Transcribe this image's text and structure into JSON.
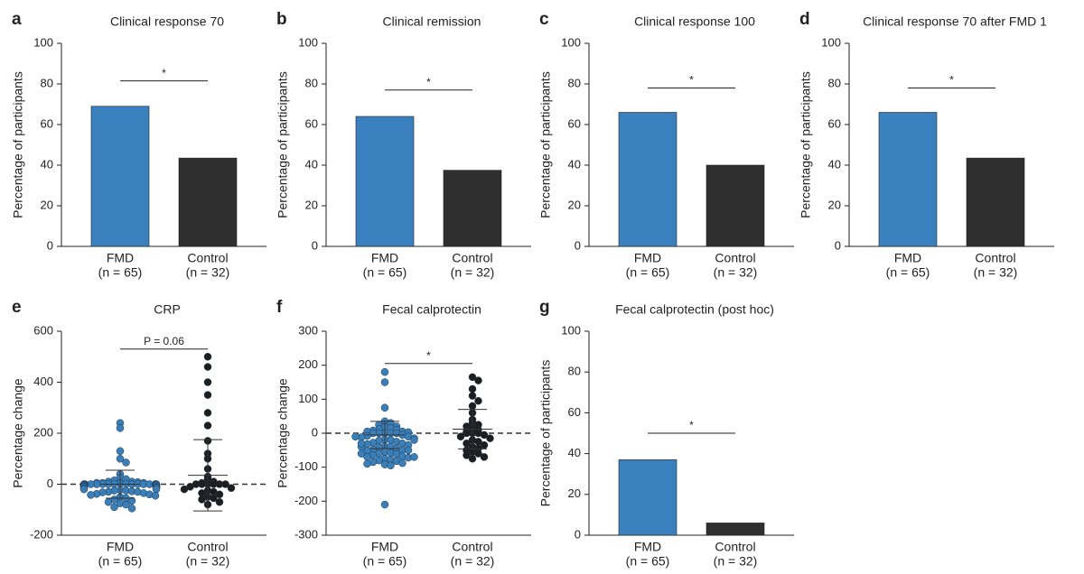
{
  "chart_data": [
    {
      "panel": "a",
      "type": "bar",
      "title": "Clinical response 70",
      "ylabel": "Percentage of participants",
      "categories": [
        "FMD",
        "Control"
      ],
      "category_notes": [
        "(n = 65)",
        "(n = 32)"
      ],
      "values": [
        69,
        43.5
      ],
      "colors": [
        "#3a80bf",
        "#2f2f2f"
      ],
      "ylim": [
        0,
        100
      ],
      "yticks": [
        0,
        20,
        40,
        60,
        80,
        100
      ],
      "significance": {
        "label": "*",
        "y": 81.5
      }
    },
    {
      "panel": "b",
      "type": "bar",
      "title": "Clinical remission",
      "ylabel": "Percentage of participants",
      "categories": [
        "FMD",
        "Control"
      ],
      "category_notes": [
        "(n = 65)",
        "(n = 32)"
      ],
      "values": [
        64,
        37.5
      ],
      "colors": [
        "#3a80bf",
        "#2f2f2f"
      ],
      "ylim": [
        0,
        100
      ],
      "yticks": [
        0,
        20,
        40,
        60,
        80,
        100
      ],
      "significance": {
        "label": "*",
        "y": 77
      }
    },
    {
      "panel": "c",
      "type": "bar",
      "title": "Clinical response 100",
      "ylabel": "Percentage of participants",
      "categories": [
        "FMD",
        "Control"
      ],
      "category_notes": [
        "(n = 65)",
        "(n = 32)"
      ],
      "values": [
        66,
        40
      ],
      "colors": [
        "#3a80bf",
        "#2f2f2f"
      ],
      "ylim": [
        0,
        100
      ],
      "yticks": [
        0,
        20,
        40,
        60,
        80,
        100
      ],
      "significance": {
        "label": "*",
        "y": 78
      }
    },
    {
      "panel": "d",
      "type": "bar",
      "title": "Clinical response 70 after FMD 1",
      "ylabel": "Percentage of participants",
      "categories": [
        "FMD",
        "Control"
      ],
      "category_notes": [
        "(n = 65)",
        "(n = 32)"
      ],
      "values": [
        66,
        43.5
      ],
      "colors": [
        "#3a80bf",
        "#2f2f2f"
      ],
      "ylim": [
        0,
        100
      ],
      "yticks": [
        0,
        20,
        40,
        60,
        80,
        100
      ],
      "significance": {
        "label": "*",
        "y": 78
      }
    },
    {
      "panel": "e",
      "type": "strip",
      "title": "CRP",
      "ylabel": "Percentage change",
      "categories": [
        "FMD",
        "Control"
      ],
      "category_notes": [
        "(n = 65)",
        "(n = 32)"
      ],
      "reference_line": 0,
      "ylim": [
        -200,
        600
      ],
      "yticks": [
        -200,
        0,
        200,
        400,
        600
      ],
      "significance": {
        "label": "P = 0.06",
        "y": 530
      },
      "groups": [
        {
          "color": "#3b7fb8",
          "mean": 0,
          "sd": 55,
          "values": [
            240,
            220,
            130,
            100,
            85,
            40,
            25,
            20,
            15,
            10,
            10,
            8,
            5,
            5,
            5,
            3,
            2,
            2,
            0,
            0,
            0,
            0,
            0,
            0,
            0,
            0,
            0,
            0,
            0,
            0,
            -2,
            -3,
            -5,
            -5,
            -5,
            -8,
            -10,
            -10,
            -12,
            -15,
            -15,
            -18,
            -20,
            -20,
            -22,
            -25,
            -25,
            -28,
            -30,
            -30,
            -32,
            -35,
            -38,
            -40,
            -42,
            -45,
            -50,
            -55,
            -60,
            -65,
            -70,
            -75,
            -80,
            -90,
            -95
          ]
        },
        {
          "color": "#1e1e1e",
          "mean": 35,
          "sd": 140,
          "values": [
            500,
            460,
            400,
            350,
            280,
            230,
            170,
            120,
            100,
            60,
            30,
            20,
            10,
            5,
            0,
            0,
            0,
            0,
            0,
            0,
            -10,
            -15,
            -20,
            -25,
            -30,
            -35,
            -40,
            -50,
            -55,
            -60,
            -70,
            -80
          ]
        }
      ]
    },
    {
      "panel": "f",
      "type": "strip",
      "title": "Fecal calprotectin",
      "ylabel": "Percentage change",
      "categories": [
        "FMD",
        "Control"
      ],
      "category_notes": [
        "(n = 65)",
        "(n = 32)"
      ],
      "reference_line": 0,
      "ylim": [
        -300,
        300
      ],
      "yticks": [
        -300,
        -200,
        -100,
        0,
        100,
        200,
        300
      ],
      "significance": {
        "label": "*",
        "y": 205
      },
      "groups": [
        {
          "color": "#3b7fb8",
          "mean": -5,
          "sd": 40,
          "values": [
            180,
            150,
            75,
            35,
            30,
            25,
            20,
            18,
            15,
            12,
            10,
            8,
            5,
            5,
            3,
            0,
            0,
            0,
            0,
            0,
            -5,
            -8,
            -10,
            -12,
            -15,
            -18,
            -20,
            -22,
            -25,
            -28,
            -30,
            -32,
            -35,
            -38,
            -40,
            -42,
            -45,
            -48,
            -50,
            -52,
            -55,
            -58,
            -60,
            -62,
            -65,
            -68,
            -70,
            -72,
            -75,
            -78,
            -80,
            -82,
            -85,
            -88,
            -90,
            -92,
            -95,
            -50,
            -40,
            -30,
            -20,
            -10,
            -60,
            -70,
            -210
          ]
        },
        {
          "color": "#1e1e1e",
          "mean": 12,
          "sd": 58,
          "values": [
            165,
            155,
            130,
            110,
            95,
            80,
            60,
            40,
            30,
            25,
            20,
            15,
            10,
            5,
            0,
            0,
            0,
            -5,
            -10,
            -15,
            -20,
            -25,
            -30,
            -35,
            -40,
            -45,
            -50,
            -55,
            -60,
            -65,
            -70,
            -75
          ]
        }
      ]
    },
    {
      "panel": "g",
      "type": "bar",
      "title": "Fecal calprotectin (post hoc)",
      "ylabel": "Percentage of participants",
      "categories": [
        "FMD",
        "Control"
      ],
      "category_notes": [
        "(n = 65)",
        "(n = 32)"
      ],
      "values": [
        37,
        6
      ],
      "colors": [
        "#3a80bf",
        "#2f2f2f"
      ],
      "ylim": [
        0,
        100
      ],
      "yticks": [
        0,
        20,
        40,
        60,
        80,
        100
      ],
      "significance": {
        "label": "*",
        "y": 50
      }
    }
  ]
}
